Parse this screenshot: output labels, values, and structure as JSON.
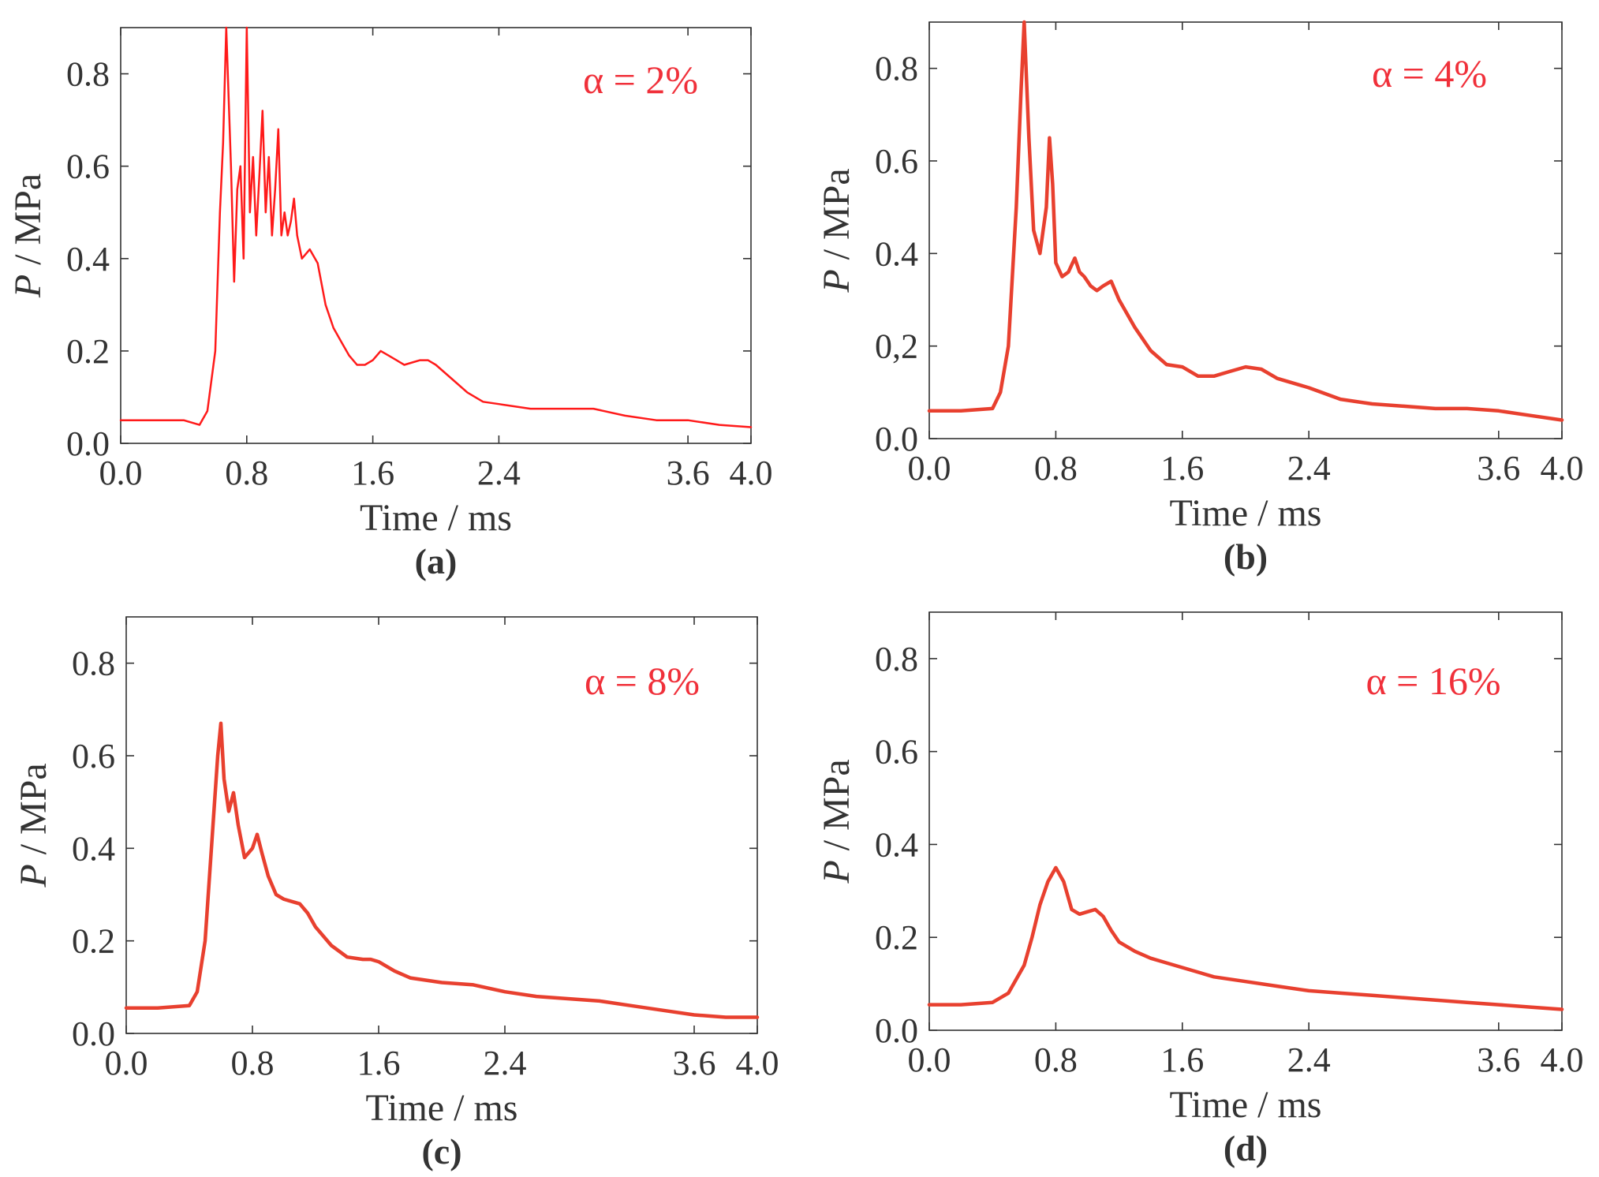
{
  "figure": {
    "colors": {
      "axes": "#333333",
      "line": "#e8402f",
      "line_a": "#ff1a1a",
      "annotation": "#f0303a"
    }
  },
  "chart_data": [
    {
      "type": "line",
      "panel_label": "(a)",
      "annotation": "α = 2%",
      "xlabel": "Time / ms",
      "ylabel_italic": "P",
      "ylabel_rest": " / MPa",
      "xlim": [
        0,
        4.0
      ],
      "ylim": [
        0,
        0.9
      ],
      "xticks": [
        "0.0",
        "0.8",
        "1.6",
        "2.4",
        "3.6",
        "4.0"
      ],
      "xtick_values": [
        0,
        0.8,
        1.6,
        2.4,
        3.6,
        4.0
      ],
      "yticks": [
        "0.0",
        "0.2",
        "0.4",
        "0.6",
        "0.8"
      ],
      "ytick_values": [
        0,
        0.2,
        0.4,
        0.6,
        0.8
      ],
      "series": [
        {
          "x": [
            0,
            0.2,
            0.4,
            0.5,
            0.55,
            0.6,
            0.63,
            0.65,
            0.67,
            0.7,
            0.72,
            0.74,
            0.76,
            0.78,
            0.8,
            0.82,
            0.84,
            0.86,
            0.88,
            0.9,
            0.92,
            0.94,
            0.96,
            0.98,
            1.0,
            1.02,
            1.04,
            1.06,
            1.08,
            1.1,
            1.12,
            1.15,
            1.2,
            1.25,
            1.3,
            1.35,
            1.4,
            1.45,
            1.5,
            1.55,
            1.6,
            1.65,
            1.7,
            1.75,
            1.8,
            1.85,
            1.9,
            1.95,
            2.0,
            2.1,
            2.2,
            2.3,
            2.4,
            2.6,
            2.8,
            3.0,
            3.2,
            3.4,
            3.6,
            3.8,
            4.0
          ],
          "y": [
            0.05,
            0.05,
            0.05,
            0.04,
            0.07,
            0.2,
            0.5,
            0.65,
            0.9,
            0.6,
            0.35,
            0.55,
            0.6,
            0.4,
            0.9,
            0.5,
            0.62,
            0.45,
            0.58,
            0.72,
            0.5,
            0.62,
            0.45,
            0.55,
            0.68,
            0.45,
            0.5,
            0.45,
            0.48,
            0.53,
            0.45,
            0.4,
            0.42,
            0.39,
            0.3,
            0.25,
            0.22,
            0.19,
            0.17,
            0.17,
            0.18,
            0.2,
            0.19,
            0.18,
            0.17,
            0.175,
            0.18,
            0.18,
            0.17,
            0.14,
            0.11,
            0.09,
            0.085,
            0.075,
            0.075,
            0.075,
            0.06,
            0.05,
            0.05,
            0.04,
            0.035
          ]
        }
      ]
    },
    {
      "type": "line",
      "panel_label": "(b)",
      "annotation": "α = 4%",
      "xlabel": "Time / ms",
      "ylabel_italic": "P",
      "ylabel_rest": " / MPa",
      "xlim": [
        0,
        4.0
      ],
      "ylim": [
        0,
        0.9
      ],
      "xticks": [
        "0.0",
        "0.8",
        "1.6",
        "2.4",
        "3.6",
        "4.0"
      ],
      "xtick_values": [
        0,
        0.8,
        1.6,
        2.4,
        3.6,
        4.0
      ],
      "yticks": [
        "0.0",
        "0,2",
        "0.4",
        "0.6",
        "0.8"
      ],
      "ytick_values": [
        0,
        0.2,
        0.4,
        0.6,
        0.8
      ],
      "series": [
        {
          "x": [
            0,
            0.2,
            0.4,
            0.45,
            0.5,
            0.55,
            0.58,
            0.6,
            0.63,
            0.66,
            0.7,
            0.74,
            0.76,
            0.78,
            0.8,
            0.84,
            0.88,
            0.92,
            0.95,
            0.98,
            1.02,
            1.06,
            1.1,
            1.15,
            1.2,
            1.3,
            1.4,
            1.5,
            1.6,
            1.7,
            1.8,
            1.9,
            2.0,
            2.1,
            2.2,
            2.4,
            2.6,
            2.8,
            3.0,
            3.2,
            3.4,
            3.6,
            3.8,
            4.0
          ],
          "y": [
            0.06,
            0.06,
            0.065,
            0.1,
            0.2,
            0.5,
            0.75,
            0.9,
            0.65,
            0.45,
            0.4,
            0.5,
            0.65,
            0.55,
            0.38,
            0.35,
            0.36,
            0.39,
            0.36,
            0.35,
            0.33,
            0.32,
            0.33,
            0.34,
            0.3,
            0.24,
            0.19,
            0.16,
            0.155,
            0.135,
            0.135,
            0.145,
            0.155,
            0.15,
            0.13,
            0.11,
            0.085,
            0.075,
            0.07,
            0.065,
            0.065,
            0.06,
            0.05,
            0.04
          ]
        }
      ]
    },
    {
      "type": "line",
      "panel_label": "(c)",
      "annotation": "α = 8%",
      "xlabel": "Time / ms",
      "ylabel_italic": "P",
      "ylabel_rest": " / MPa",
      "xlim": [
        0,
        4.0
      ],
      "ylim": [
        0,
        0.9
      ],
      "xticks": [
        "0.0",
        "0.8",
        "1.6",
        "2.4",
        "3.6",
        "4.0"
      ],
      "xtick_values": [
        0,
        0.8,
        1.6,
        2.4,
        3.6,
        4.0
      ],
      "yticks": [
        "0.0",
        "0.2",
        "0.4",
        "0.6",
        "0.8"
      ],
      "ytick_values": [
        0,
        0.2,
        0.4,
        0.6,
        0.8
      ],
      "series": [
        {
          "x": [
            0,
            0.2,
            0.4,
            0.45,
            0.5,
            0.55,
            0.58,
            0.6,
            0.62,
            0.65,
            0.68,
            0.71,
            0.75,
            0.8,
            0.83,
            0.86,
            0.9,
            0.95,
            1.0,
            1.05,
            1.1,
            1.15,
            1.2,
            1.3,
            1.4,
            1.5,
            1.55,
            1.6,
            1.7,
            1.8,
            2.0,
            2.2,
            2.4,
            2.6,
            2.8,
            3.0,
            3.2,
            3.4,
            3.6,
            3.8,
            4.0
          ],
          "y": [
            0.055,
            0.055,
            0.06,
            0.09,
            0.2,
            0.45,
            0.6,
            0.67,
            0.55,
            0.48,
            0.52,
            0.45,
            0.38,
            0.4,
            0.43,
            0.39,
            0.34,
            0.3,
            0.29,
            0.285,
            0.28,
            0.26,
            0.23,
            0.19,
            0.165,
            0.16,
            0.16,
            0.155,
            0.135,
            0.12,
            0.11,
            0.105,
            0.09,
            0.08,
            0.075,
            0.07,
            0.06,
            0.05,
            0.04,
            0.035,
            0.035
          ]
        }
      ]
    },
    {
      "type": "line",
      "panel_label": "(d)",
      "annotation": "α = 16%",
      "xlabel": "Time / ms",
      "ylabel_italic": "P",
      "ylabel_rest": " / MPa",
      "xlim": [
        0,
        4.0
      ],
      "ylim": [
        0,
        0.9
      ],
      "xticks": [
        "0.0",
        "0.8",
        "1.6",
        "2.4",
        "3.6",
        "4.0"
      ],
      "xtick_values": [
        0,
        0.8,
        1.6,
        2.4,
        3.6,
        4.0
      ],
      "yticks": [
        "0.0",
        "0.2",
        "0.4",
        "0.6",
        "0.8"
      ],
      "ytick_values": [
        0,
        0.2,
        0.4,
        0.6,
        0.8
      ],
      "series": [
        {
          "x": [
            0,
            0.2,
            0.4,
            0.5,
            0.6,
            0.65,
            0.7,
            0.75,
            0.8,
            0.85,
            0.9,
            0.95,
            1.0,
            1.05,
            1.1,
            1.15,
            1.2,
            1.3,
            1.4,
            1.5,
            1.6,
            1.8,
            2.0,
            2.2,
            2.4,
            2.6,
            2.8,
            3.0,
            3.2,
            3.4,
            3.6,
            3.8,
            4.0
          ],
          "y": [
            0.055,
            0.055,
            0.06,
            0.08,
            0.14,
            0.2,
            0.27,
            0.32,
            0.35,
            0.32,
            0.26,
            0.25,
            0.255,
            0.26,
            0.245,
            0.215,
            0.19,
            0.17,
            0.155,
            0.145,
            0.135,
            0.115,
            0.105,
            0.095,
            0.085,
            0.08,
            0.075,
            0.07,
            0.065,
            0.06,
            0.055,
            0.05,
            0.045
          ]
        }
      ]
    }
  ]
}
